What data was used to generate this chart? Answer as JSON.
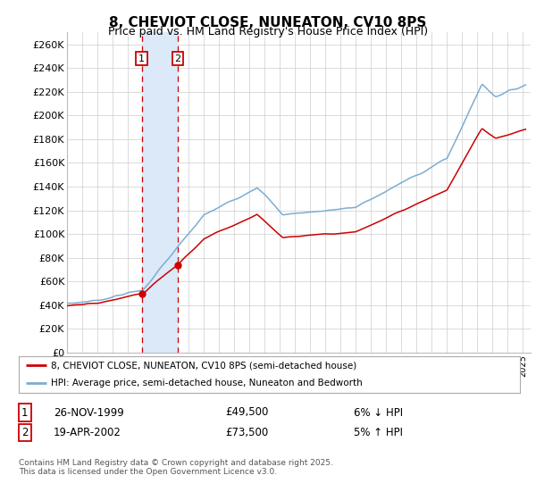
{
  "title": "8, CHEVIOT CLOSE, NUNEATON, CV10 8PS",
  "subtitle": "Price paid vs. HM Land Registry's House Price Index (HPI)",
  "ylabel_ticks": [
    "£0",
    "£20K",
    "£40K",
    "£60K",
    "£80K",
    "£100K",
    "£120K",
    "£140K",
    "£160K",
    "£180K",
    "£200K",
    "£220K",
    "£240K",
    "£260K"
  ],
  "ylim": [
    0,
    270000
  ],
  "ytick_values": [
    0,
    20000,
    40000,
    60000,
    80000,
    100000,
    120000,
    140000,
    160000,
    180000,
    200000,
    220000,
    240000,
    260000
  ],
  "sale1_date": 1999.92,
  "sale1_price": 49500,
  "sale2_date": 2002.29,
  "sale2_price": 73500,
  "shade_color": "#dce9f8",
  "dashed_color": "#cc0000",
  "line_color_red": "#cc0000",
  "line_color_blue": "#7aadd4",
  "legend_line1": "8, CHEVIOT CLOSE, NUNEATON, CV10 8PS (semi-detached house)",
  "legend_line2": "HPI: Average price, semi-detached house, Nuneaton and Bedworth",
  "table_row1": [
    "1",
    "26-NOV-1999",
    "£49,500",
    "6% ↓ HPI"
  ],
  "table_row2": [
    "2",
    "19-APR-2002",
    "£73,500",
    "5% ↑ HPI"
  ],
  "footnote": "Contains HM Land Registry data © Crown copyright and database right 2025.\nThis data is licensed under the Open Government Licence v3.0.",
  "bg_color": "#ffffff",
  "grid_color": "#cccccc"
}
